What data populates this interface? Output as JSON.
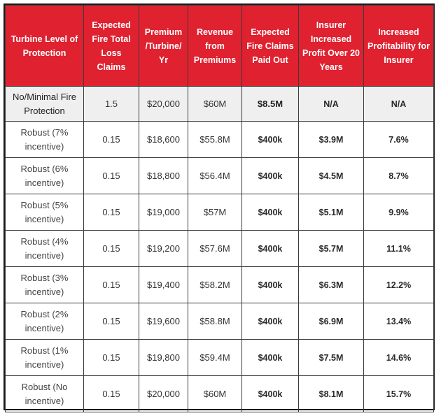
{
  "table": {
    "headers": [
      "Turbine Level of Protection",
      "Expected Fire Total Loss Claims",
      "Premium /Turbine/ Yr",
      "Revenue from Premiums",
      "Expected Fire Claims Paid Out",
      "Insurer Increased Profit Over 20 Years",
      "Increased Profitability for Insurer"
    ],
    "rows": [
      [
        "No/Minimal Fire Protection",
        "1.5",
        "$20,000",
        "$60M",
        "$8.5M",
        "N/A",
        "N/A"
      ],
      [
        "Robust (7% incentive)",
        "0.15",
        "$18,600",
        "$55.8M",
        "$400k",
        "$3.9M",
        "7.6%"
      ],
      [
        "Robust (6% incentive)",
        "0.15",
        "$18,800",
        "$56.4M",
        "$400k",
        "$4.5M",
        "8.7%"
      ],
      [
        "Robust (5% incentive)",
        "0.15",
        "$19,000",
        "$57M",
        "$400k",
        "$5.1M",
        "9.9%"
      ],
      [
        "Robust (4% incentive)",
        "0.15",
        "$19,200",
        "$57.6M",
        "$400k",
        "$5.7M",
        "11.1%"
      ],
      [
        "Robust (3% incentive)",
        "0.15",
        "$19,400",
        "$58.2M",
        "$400k",
        "$6.3M",
        "12.2%"
      ],
      [
        "Robust (2% incentive)",
        "0.15",
        "$19,600",
        "$58.8M",
        "$400k",
        "$6.9M",
        "13.4%"
      ],
      [
        "Robust (1% incentive)",
        "0.15",
        "$19,800",
        "$59.4M",
        "$400k",
        "$7.5M",
        "14.6%"
      ],
      [
        "Robust (No incentive)",
        "0.15",
        "$20,000",
        "$60M",
        "$400k",
        "$8.1M",
        "15.7%"
      ]
    ]
  },
  "colors": {
    "header_bg": "#e02130",
    "header_text": "#ffffff",
    "first_row_bg": "#efefef",
    "border": "#3a3a3a"
  }
}
